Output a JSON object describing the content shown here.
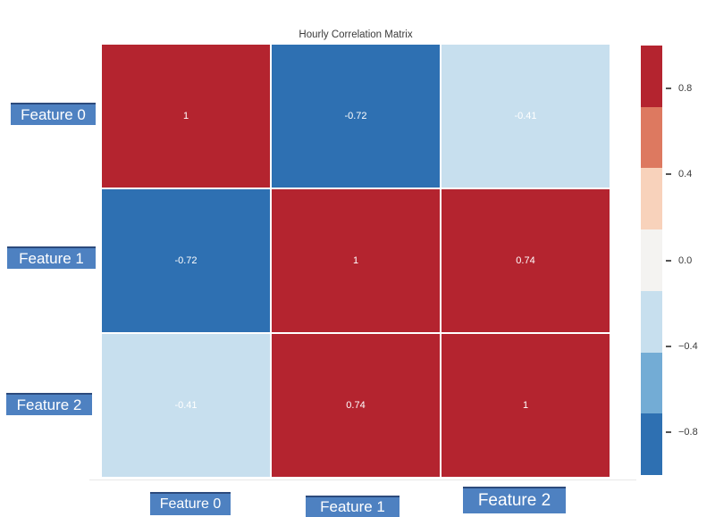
{
  "title": "Hourly Correlation Matrix",
  "chart_data": {
    "type": "heatmap",
    "title": "Hourly Correlation Matrix",
    "x_labels": [
      "Feature 0",
      "Feature 1",
      "Feature 2"
    ],
    "y_labels": [
      "Feature 0",
      "Feature 1",
      "Feature 2"
    ],
    "values": [
      [
        1,
        -0.72,
        -0.41
      ],
      [
        -0.72,
        1,
        0.74
      ],
      [
        -0.41,
        0.74,
        1
      ]
    ],
    "cell_labels": [
      [
        "1",
        "-0.72",
        "-0.41"
      ],
      [
        "-0.72",
        "1",
        "0.74"
      ],
      [
        "-0.41",
        "0.74",
        "1"
      ]
    ],
    "zmin": -1,
    "zmax": 1,
    "grid": false,
    "legend_position": "right",
    "colorbar": {
      "colors_top_to_bottom": [
        "#b4242f",
        "#dd7960",
        "#f8d2bb",
        "#f4f3f1",
        "#c7dfee",
        "#73acd5",
        "#2e70b2"
      ],
      "ticks": [
        {
          "value": 0.8,
          "label": "0.8"
        },
        {
          "value": 0.4,
          "label": "0.4"
        },
        {
          "value": 0.0,
          "label": "0.0"
        },
        {
          "value": -0.4,
          "label": "−0.4"
        },
        {
          "value": -0.8,
          "label": "−0.8"
        }
      ]
    }
  },
  "colors": {
    "cell_text": "#ffffff",
    "label_bg": "#4e81c1",
    "label_border": "#2c4a7c",
    "label_text": "#ffffff",
    "title_text": "#3b3b3b",
    "tick_text": "#3a3a3a"
  }
}
